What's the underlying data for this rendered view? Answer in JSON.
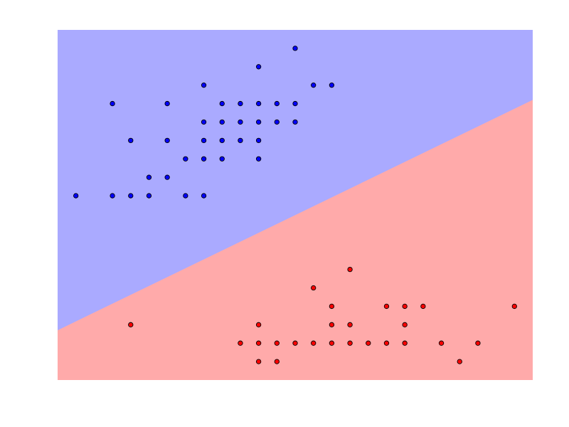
{
  "chart_data": {
    "type": "scatter",
    "title": "",
    "xlabel": "",
    "ylabel": "",
    "grid": false,
    "axes_visible": false,
    "xlim": [
      0,
      26
    ],
    "ylim": [
      0,
      19
    ],
    "regions": {
      "boundary_line": {
        "points": [
          [
            0,
            2.7
          ],
          [
            26,
            15.2
          ]
        ]
      },
      "above": {
        "name": "",
        "color": "#aaaaff"
      },
      "below": {
        "name": "",
        "color": "#ffaaaa"
      }
    },
    "series": [
      {
        "name": "",
        "color": "#0000ff",
        "edge_color": "#000000",
        "points": [
          [
            13,
            18
          ],
          [
            11,
            17
          ],
          [
            8,
            16
          ],
          [
            14,
            16
          ],
          [
            15,
            16
          ],
          [
            3,
            15
          ],
          [
            6,
            15
          ],
          [
            9,
            15
          ],
          [
            10,
            15
          ],
          [
            11,
            15
          ],
          [
            12,
            15
          ],
          [
            13,
            15
          ],
          [
            8,
            14
          ],
          [
            9,
            14
          ],
          [
            10,
            14
          ],
          [
            11,
            14
          ],
          [
            12,
            14
          ],
          [
            13,
            14
          ],
          [
            4,
            13
          ],
          [
            6,
            13
          ],
          [
            8,
            13
          ],
          [
            9,
            13
          ],
          [
            10,
            13
          ],
          [
            11,
            13
          ],
          [
            7,
            12
          ],
          [
            8,
            12
          ],
          [
            9,
            12
          ],
          [
            11,
            12
          ],
          [
            5,
            11
          ],
          [
            6,
            11
          ],
          [
            1,
            10
          ],
          [
            3,
            10
          ],
          [
            4,
            10
          ],
          [
            5,
            10
          ],
          [
            7,
            10
          ],
          [
            8,
            10
          ]
        ]
      },
      {
        "name": "",
        "color": "#ff0000",
        "edge_color": "#000000",
        "points": [
          [
            16,
            6
          ],
          [
            14,
            5
          ],
          [
            15,
            4
          ],
          [
            18,
            4
          ],
          [
            19,
            4
          ],
          [
            20,
            4
          ],
          [
            25,
            4
          ],
          [
            4,
            3
          ],
          [
            11,
            3
          ],
          [
            15,
            3
          ],
          [
            16,
            3
          ],
          [
            19,
            3
          ],
          [
            10,
            2
          ],
          [
            11,
            2
          ],
          [
            12,
            2
          ],
          [
            13,
            2
          ],
          [
            14,
            2
          ],
          [
            15,
            2
          ],
          [
            16,
            2
          ],
          [
            17,
            2
          ],
          [
            18,
            2
          ],
          [
            19,
            2
          ],
          [
            21,
            2
          ],
          [
            23,
            2
          ],
          [
            11,
            1
          ],
          [
            12,
            1
          ],
          [
            22,
            1
          ]
        ]
      }
    ]
  }
}
